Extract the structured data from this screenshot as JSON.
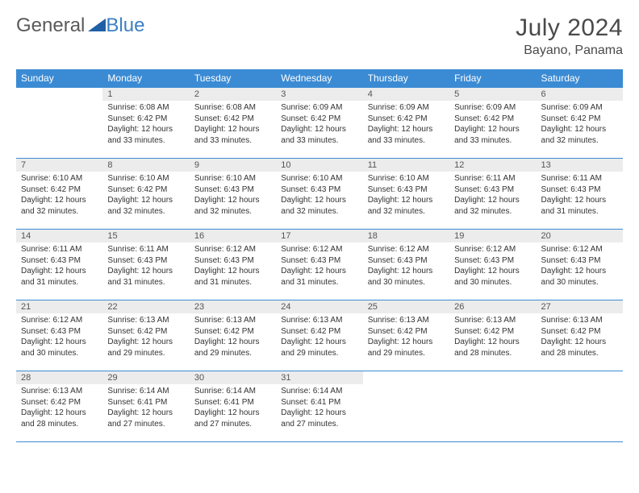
{
  "brand": {
    "part1": "General",
    "part2": "Blue"
  },
  "title": "July 2024",
  "location": "Bayano, Panama",
  "colors": {
    "header_bg": "#3b8bd4",
    "header_text": "#ffffff",
    "daynum_bg": "#ececec",
    "border": "#3b8bd4",
    "text": "#333333",
    "logo_gray": "#5a5a5a",
    "logo_blue": "#3b7fc4"
  },
  "weekdays": [
    "Sunday",
    "Monday",
    "Tuesday",
    "Wednesday",
    "Thursday",
    "Friday",
    "Saturday"
  ],
  "weeks": [
    [
      null,
      {
        "n": "1",
        "sr": "Sunrise: 6:08 AM",
        "ss": "Sunset: 6:42 PM",
        "d1": "Daylight: 12 hours",
        "d2": "and 33 minutes."
      },
      {
        "n": "2",
        "sr": "Sunrise: 6:08 AM",
        "ss": "Sunset: 6:42 PM",
        "d1": "Daylight: 12 hours",
        "d2": "and 33 minutes."
      },
      {
        "n": "3",
        "sr": "Sunrise: 6:09 AM",
        "ss": "Sunset: 6:42 PM",
        "d1": "Daylight: 12 hours",
        "d2": "and 33 minutes."
      },
      {
        "n": "4",
        "sr": "Sunrise: 6:09 AM",
        "ss": "Sunset: 6:42 PM",
        "d1": "Daylight: 12 hours",
        "d2": "and 33 minutes."
      },
      {
        "n": "5",
        "sr": "Sunrise: 6:09 AM",
        "ss": "Sunset: 6:42 PM",
        "d1": "Daylight: 12 hours",
        "d2": "and 33 minutes."
      },
      {
        "n": "6",
        "sr": "Sunrise: 6:09 AM",
        "ss": "Sunset: 6:42 PM",
        "d1": "Daylight: 12 hours",
        "d2": "and 32 minutes."
      }
    ],
    [
      {
        "n": "7",
        "sr": "Sunrise: 6:10 AM",
        "ss": "Sunset: 6:42 PM",
        "d1": "Daylight: 12 hours",
        "d2": "and 32 minutes."
      },
      {
        "n": "8",
        "sr": "Sunrise: 6:10 AM",
        "ss": "Sunset: 6:42 PM",
        "d1": "Daylight: 12 hours",
        "d2": "and 32 minutes."
      },
      {
        "n": "9",
        "sr": "Sunrise: 6:10 AM",
        "ss": "Sunset: 6:43 PM",
        "d1": "Daylight: 12 hours",
        "d2": "and 32 minutes."
      },
      {
        "n": "10",
        "sr": "Sunrise: 6:10 AM",
        "ss": "Sunset: 6:43 PM",
        "d1": "Daylight: 12 hours",
        "d2": "and 32 minutes."
      },
      {
        "n": "11",
        "sr": "Sunrise: 6:10 AM",
        "ss": "Sunset: 6:43 PM",
        "d1": "Daylight: 12 hours",
        "d2": "and 32 minutes."
      },
      {
        "n": "12",
        "sr": "Sunrise: 6:11 AM",
        "ss": "Sunset: 6:43 PM",
        "d1": "Daylight: 12 hours",
        "d2": "and 32 minutes."
      },
      {
        "n": "13",
        "sr": "Sunrise: 6:11 AM",
        "ss": "Sunset: 6:43 PM",
        "d1": "Daylight: 12 hours",
        "d2": "and 31 minutes."
      }
    ],
    [
      {
        "n": "14",
        "sr": "Sunrise: 6:11 AM",
        "ss": "Sunset: 6:43 PM",
        "d1": "Daylight: 12 hours",
        "d2": "and 31 minutes."
      },
      {
        "n": "15",
        "sr": "Sunrise: 6:11 AM",
        "ss": "Sunset: 6:43 PM",
        "d1": "Daylight: 12 hours",
        "d2": "and 31 minutes."
      },
      {
        "n": "16",
        "sr": "Sunrise: 6:12 AM",
        "ss": "Sunset: 6:43 PM",
        "d1": "Daylight: 12 hours",
        "d2": "and 31 minutes."
      },
      {
        "n": "17",
        "sr": "Sunrise: 6:12 AM",
        "ss": "Sunset: 6:43 PM",
        "d1": "Daylight: 12 hours",
        "d2": "and 31 minutes."
      },
      {
        "n": "18",
        "sr": "Sunrise: 6:12 AM",
        "ss": "Sunset: 6:43 PM",
        "d1": "Daylight: 12 hours",
        "d2": "and 30 minutes."
      },
      {
        "n": "19",
        "sr": "Sunrise: 6:12 AM",
        "ss": "Sunset: 6:43 PM",
        "d1": "Daylight: 12 hours",
        "d2": "and 30 minutes."
      },
      {
        "n": "20",
        "sr": "Sunrise: 6:12 AM",
        "ss": "Sunset: 6:43 PM",
        "d1": "Daylight: 12 hours",
        "d2": "and 30 minutes."
      }
    ],
    [
      {
        "n": "21",
        "sr": "Sunrise: 6:12 AM",
        "ss": "Sunset: 6:43 PM",
        "d1": "Daylight: 12 hours",
        "d2": "and 30 minutes."
      },
      {
        "n": "22",
        "sr": "Sunrise: 6:13 AM",
        "ss": "Sunset: 6:42 PM",
        "d1": "Daylight: 12 hours",
        "d2": "and 29 minutes."
      },
      {
        "n": "23",
        "sr": "Sunrise: 6:13 AM",
        "ss": "Sunset: 6:42 PM",
        "d1": "Daylight: 12 hours",
        "d2": "and 29 minutes."
      },
      {
        "n": "24",
        "sr": "Sunrise: 6:13 AM",
        "ss": "Sunset: 6:42 PM",
        "d1": "Daylight: 12 hours",
        "d2": "and 29 minutes."
      },
      {
        "n": "25",
        "sr": "Sunrise: 6:13 AM",
        "ss": "Sunset: 6:42 PM",
        "d1": "Daylight: 12 hours",
        "d2": "and 29 minutes."
      },
      {
        "n": "26",
        "sr": "Sunrise: 6:13 AM",
        "ss": "Sunset: 6:42 PM",
        "d1": "Daylight: 12 hours",
        "d2": "and 28 minutes."
      },
      {
        "n": "27",
        "sr": "Sunrise: 6:13 AM",
        "ss": "Sunset: 6:42 PM",
        "d1": "Daylight: 12 hours",
        "d2": "and 28 minutes."
      }
    ],
    [
      {
        "n": "28",
        "sr": "Sunrise: 6:13 AM",
        "ss": "Sunset: 6:42 PM",
        "d1": "Daylight: 12 hours",
        "d2": "and 28 minutes."
      },
      {
        "n": "29",
        "sr": "Sunrise: 6:14 AM",
        "ss": "Sunset: 6:41 PM",
        "d1": "Daylight: 12 hours",
        "d2": "and 27 minutes."
      },
      {
        "n": "30",
        "sr": "Sunrise: 6:14 AM",
        "ss": "Sunset: 6:41 PM",
        "d1": "Daylight: 12 hours",
        "d2": "and 27 minutes."
      },
      {
        "n": "31",
        "sr": "Sunrise: 6:14 AM",
        "ss": "Sunset: 6:41 PM",
        "d1": "Daylight: 12 hours",
        "d2": "and 27 minutes."
      },
      null,
      null,
      null
    ]
  ]
}
